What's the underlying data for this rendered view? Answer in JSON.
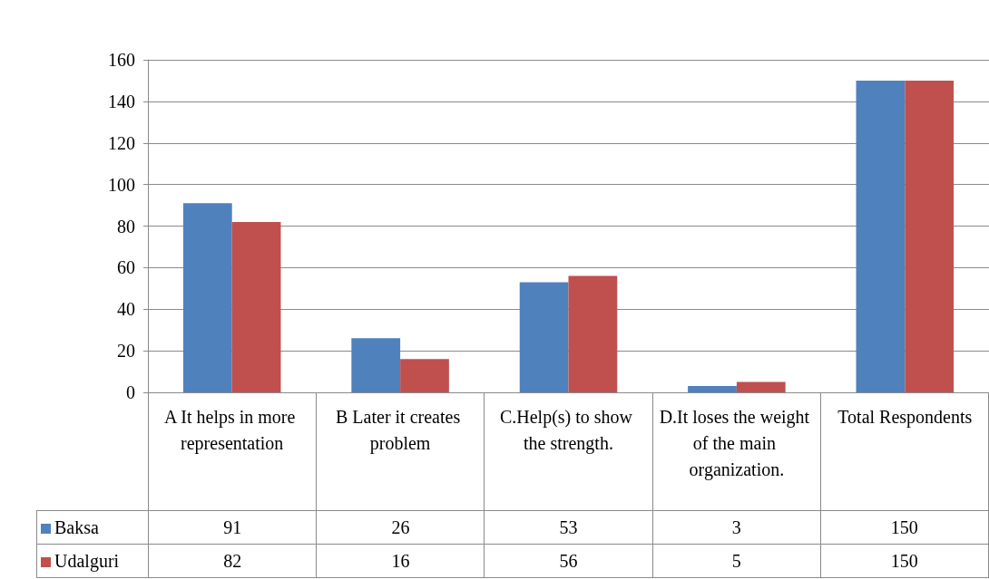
{
  "chart_data": {
    "type": "bar",
    "categories": [
      "A It helps in more representation",
      "B Later it creates problem",
      "C.Help(s) to show the strength.",
      "D.It loses the weight of the main organization.",
      "Total Respondents"
    ],
    "series": [
      {
        "name": "Baksa",
        "color": "#4f81bd",
        "values": [
          91,
          26,
          53,
          3,
          150
        ]
      },
      {
        "name": "Udalguri",
        "color": "#c0504d",
        "values": [
          82,
          16,
          56,
          5,
          150
        ]
      }
    ],
    "ylim": [
      0,
      160
    ],
    "yticks": [
      0,
      20,
      40,
      60,
      80,
      100,
      120,
      140,
      160
    ],
    "grid": "y",
    "legend": "bottom",
    "data_labels": true
  }
}
